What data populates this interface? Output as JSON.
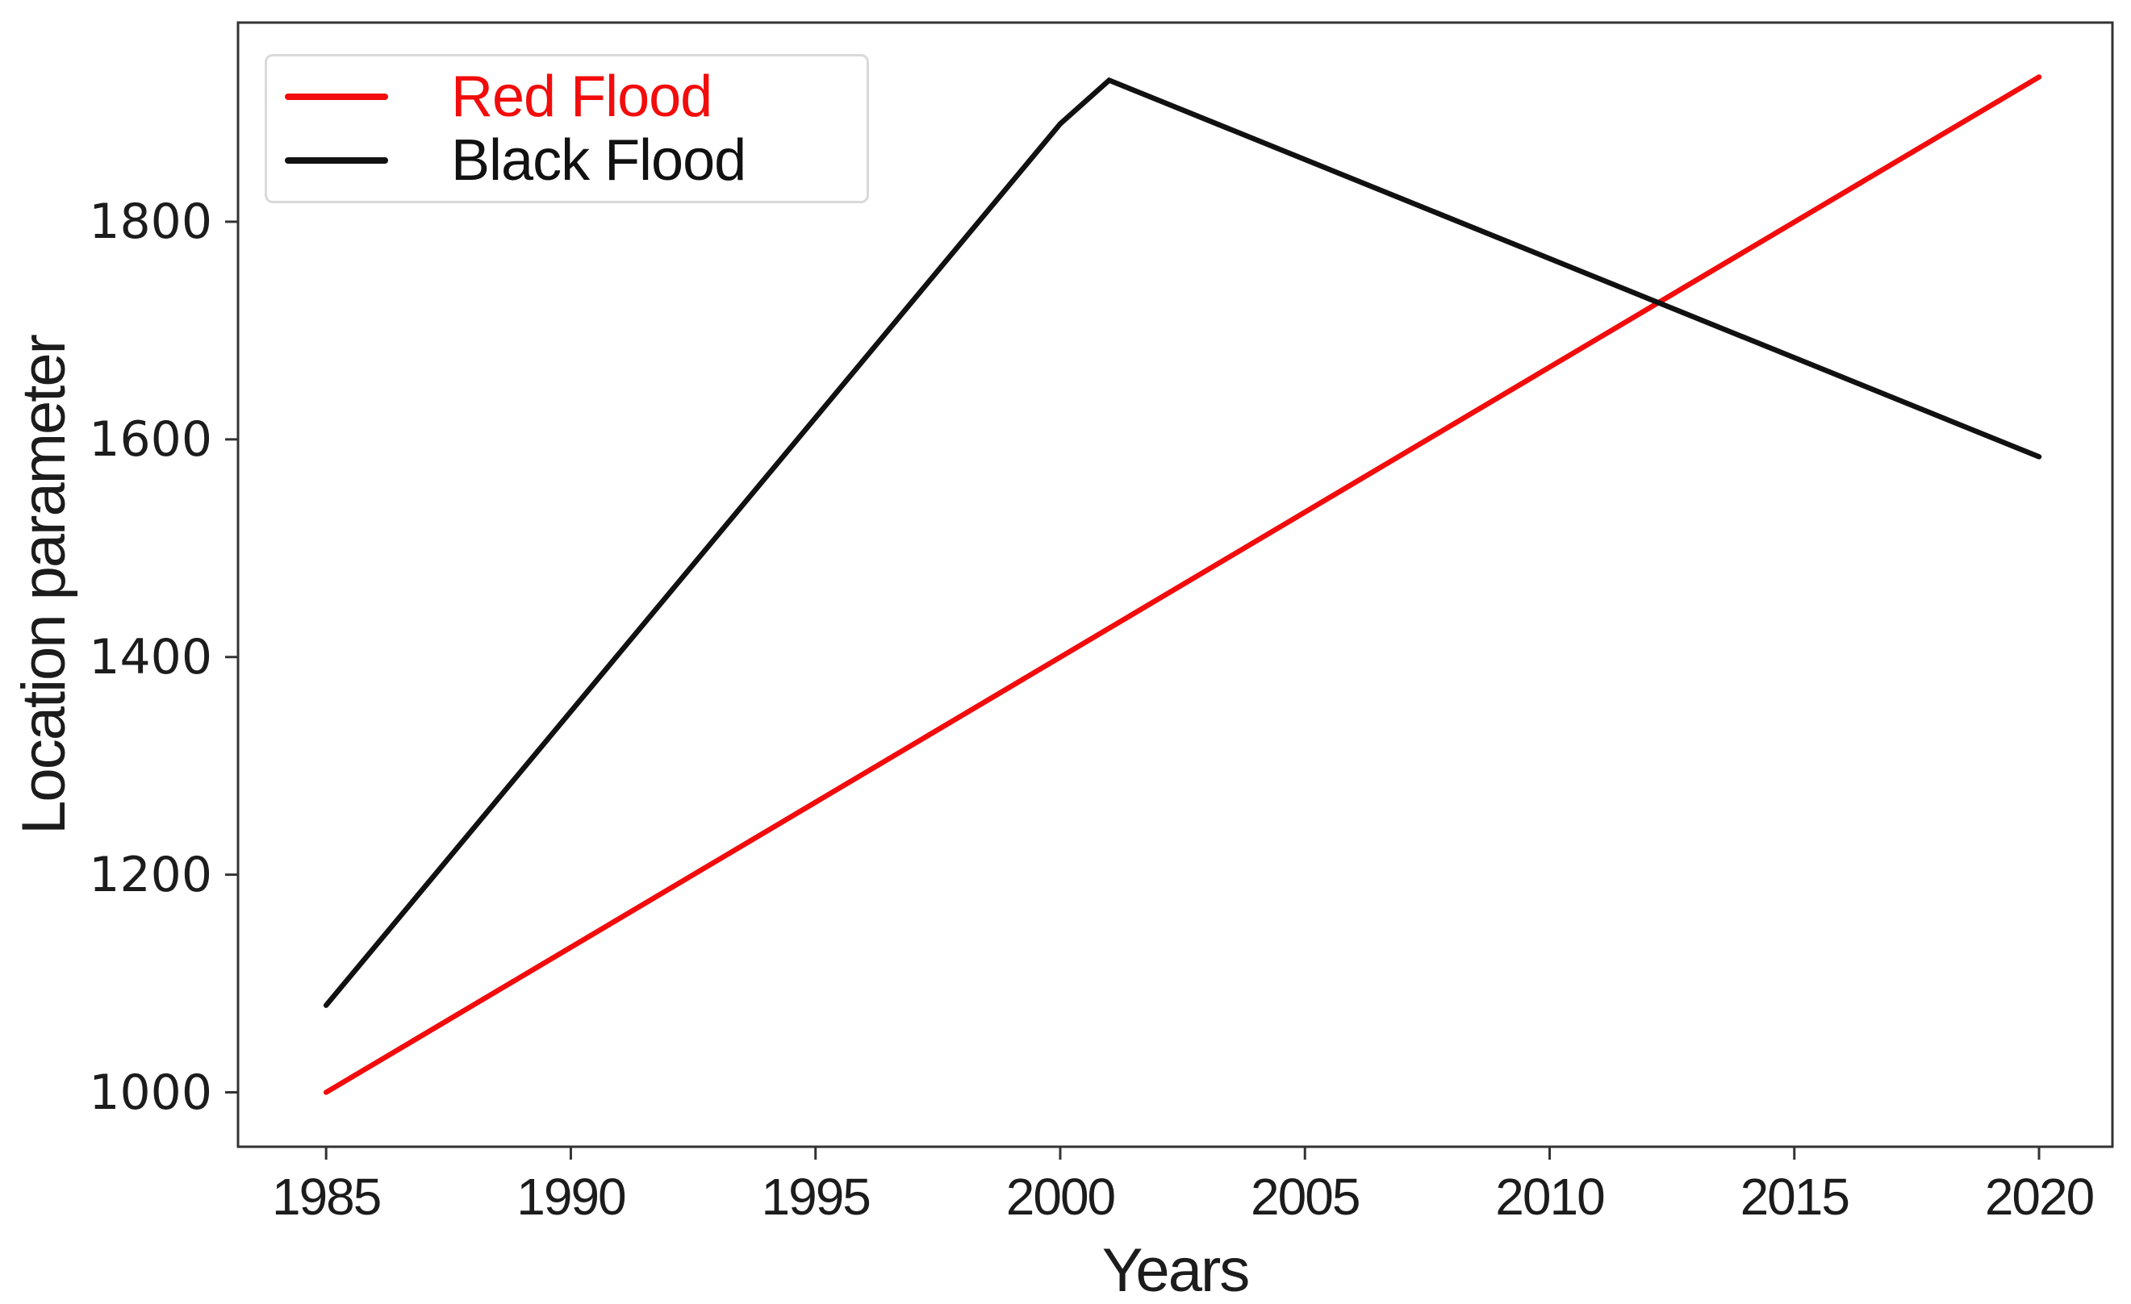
{
  "figure": {
    "background": "#ffffff",
    "spine_color": "#333333",
    "tick_color": "#333333",
    "text_color": "#1c1c1c",
    "legend_border_color": "#d9d9d9"
  },
  "chart_data": {
    "type": "line",
    "title": "",
    "xlabel": "Years",
    "ylabel": "Location parameter",
    "xlim": [
      1983.2,
      2021.5
    ],
    "ylim": [
      950,
      1983
    ],
    "xticks": [
      1985,
      1990,
      1995,
      2000,
      2005,
      2010,
      2015,
      2020
    ],
    "yticks": [
      1000,
      1200,
      1400,
      1600,
      1800
    ],
    "grid": false,
    "legend_position": "upper-left",
    "series": [
      {
        "name": "Red Flood",
        "color": "#f20c0c",
        "x": [
          1985,
          2020
        ],
        "y": [
          1000,
          1933
        ]
      },
      {
        "name": "Black Flood",
        "color": "#111111",
        "x": [
          1985,
          2000,
          2001,
          2020
        ],
        "y": [
          1080,
          1890,
          1930,
          1584
        ]
      }
    ]
  }
}
